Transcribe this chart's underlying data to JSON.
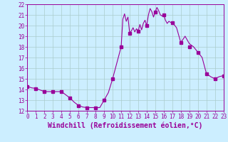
{
  "x": [
    0,
    0.5,
    1,
    1.5,
    2,
    2.5,
    3,
    3.5,
    4,
    4.5,
    5,
    5.5,
    6,
    6.5,
    7,
    7.5,
    8,
    8.5,
    9,
    9.5,
    10,
    10.5,
    11,
    11.2,
    11.4,
    11.6,
    11.8,
    12,
    12.2,
    12.4,
    12.6,
    12.8,
    13,
    13.2,
    13.4,
    13.6,
    13.8,
    14,
    14.2,
    14.4,
    14.6,
    14.8,
    15,
    15.2,
    15.4,
    15.6,
    15.8,
    16,
    16.2,
    16.4,
    16.6,
    16.8,
    17,
    17.5,
    18,
    18.5,
    19,
    19.5,
    20,
    20.5,
    21,
    21.5,
    22,
    22.5,
    23
  ],
  "y": [
    14.3,
    14.15,
    14.1,
    13.95,
    13.8,
    13.8,
    13.8,
    13.8,
    13.8,
    13.5,
    13.2,
    12.8,
    12.5,
    12.35,
    12.3,
    12.3,
    12.3,
    12.3,
    13.0,
    13.7,
    15.0,
    16.5,
    18.0,
    20.6,
    21.1,
    20.4,
    20.8,
    19.3,
    19.5,
    19.8,
    19.4,
    19.7,
    19.5,
    20.1,
    19.6,
    20.2,
    20.5,
    20.0,
    21.0,
    21.6,
    21.3,
    20.8,
    21.3,
    21.7,
    21.4,
    21.0,
    20.9,
    21.0,
    20.5,
    20.2,
    20.4,
    20.3,
    20.3,
    19.8,
    18.4,
    19.0,
    18.3,
    18.0,
    17.5,
    17.0,
    15.5,
    15.2,
    15.0,
    15.2,
    15.3
  ],
  "line_color": "#990099",
  "marker": "s",
  "marker_x": [
    0,
    1,
    2,
    3,
    4,
    5,
    6,
    7,
    8,
    9,
    10,
    11,
    12,
    13,
    14,
    15,
    16,
    17,
    18,
    19,
    20,
    21,
    22,
    23
  ],
  "marker_y": [
    14.3,
    14.1,
    13.8,
    13.8,
    13.8,
    13.2,
    12.5,
    12.3,
    12.3,
    13.0,
    15.0,
    18.0,
    19.3,
    19.5,
    20.0,
    21.3,
    21.0,
    20.3,
    18.4,
    18.0,
    17.5,
    15.5,
    15.0,
    15.3
  ],
  "marker_size": 2.5,
  "bg_color": "#cceeff",
  "grid_color": "#aacccc",
  "axis_color": "#990099",
  "tick_color": "#990099",
  "xlabel": "Windchill (Refroidissement éolien,°C)",
  "xlabel_fontsize": 7,
  "xlim": [
    0,
    23
  ],
  "ylim": [
    12,
    22
  ],
  "yticks": [
    12,
    13,
    14,
    15,
    16,
    17,
    18,
    19,
    20,
    21,
    22
  ],
  "xticks": [
    0,
    1,
    2,
    3,
    4,
    5,
    6,
    7,
    8,
    9,
    10,
    11,
    12,
    13,
    14,
    15,
    16,
    17,
    18,
    19,
    20,
    21,
    22,
    23
  ],
  "tick_fontsize": 5.5,
  "line_width": 0.8
}
